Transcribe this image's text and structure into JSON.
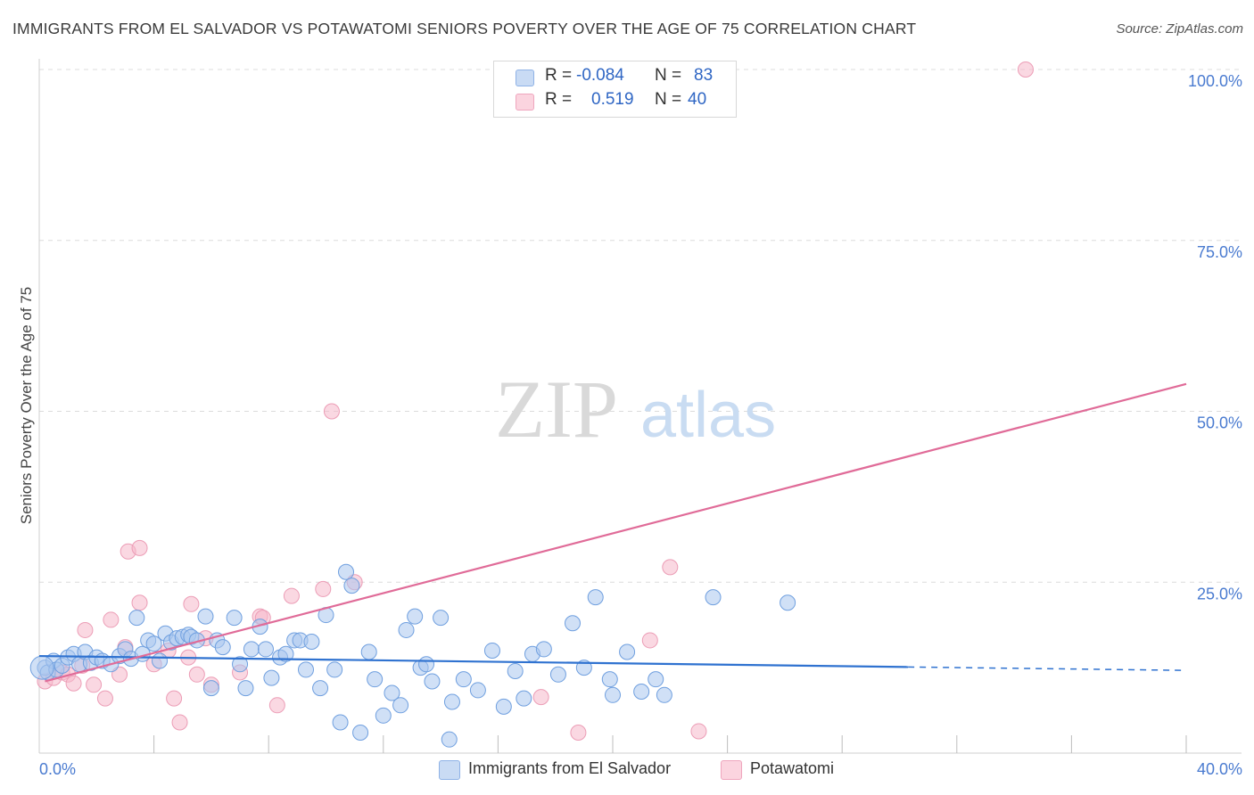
{
  "title": "IMMIGRANTS FROM EL SALVADOR VS POTAWATOMI SENIORS POVERTY OVER THE AGE OF 75 CORRELATION CHART",
  "source": "Source: ZipAtlas.com",
  "watermark": {
    "zip": "ZIP",
    "atlas": "atlas"
  },
  "legend": {
    "rows": [
      {
        "r_label": "R =",
        "r_value": "-0.084",
        "n_label": "N =",
        "n_value": "83",
        "color": "#a9c6ef"
      },
      {
        "r_label": "R =",
        "r_value": "0.519",
        "n_label": "N =",
        "n_value": "40",
        "color": "#f5b8cb"
      }
    ]
  },
  "bottom_legend": [
    {
      "label": "Immigrants from El Salvador",
      "color": "#a9c6ef"
    },
    {
      "label": "Potawatomi",
      "color": "#f5b8cb"
    }
  ],
  "colors": {
    "blue_fill": "#a9c6ef",
    "blue_line": "#2f72d0",
    "pink_fill": "#f5b8cb",
    "pink_line": "#e06b98",
    "tick_text": "#4a7bd0"
  },
  "chart_data": {
    "type": "scatter",
    "title": "IMMIGRANTS FROM EL SALVADOR VS POTAWATOMI SENIORS POVERTY OVER THE AGE OF 75 CORRELATION CHART",
    "xlabel": "",
    "ylabel": "Seniors Poverty Over the Age of 75",
    "xlim": [
      0,
      40
    ],
    "ylim": [
      0,
      100
    ],
    "x_tick_labels": [
      "0.0%",
      "40.0%"
    ],
    "y_ticks": [
      25,
      50,
      75,
      100
    ],
    "y_tick_labels": [
      "25.0%",
      "50.0%",
      "75.0%",
      "100.0%"
    ],
    "grid": true,
    "series": [
      {
        "name": "Immigrants from El Salvador",
        "trend": {
          "x": [
            0,
            30.3
          ],
          "y": [
            14.2,
            12.6
          ],
          "dashed_to": [
            40,
            12.1
          ]
        },
        "points": [
          [
            0.2,
            12.5
          ],
          [
            0.3,
            11.8
          ],
          [
            0.5,
            13.5
          ],
          [
            0.6,
            12.2
          ],
          [
            0.8,
            12.8
          ],
          [
            1.0,
            14.0
          ],
          [
            1.2,
            14.5
          ],
          [
            1.4,
            13.0
          ],
          [
            1.6,
            14.8
          ],
          [
            1.8,
            13.2
          ],
          [
            2.0,
            14.0
          ],
          [
            2.2,
            13.5
          ],
          [
            2.5,
            13.0
          ],
          [
            2.8,
            14.2
          ],
          [
            3.0,
            15.2
          ],
          [
            3.2,
            13.8
          ],
          [
            3.4,
            19.8
          ],
          [
            3.6,
            14.5
          ],
          [
            3.8,
            16.5
          ],
          [
            4.0,
            16.0
          ],
          [
            4.2,
            13.5
          ],
          [
            4.4,
            17.5
          ],
          [
            4.6,
            16.2
          ],
          [
            4.8,
            16.8
          ],
          [
            5.0,
            17.0
          ],
          [
            5.2,
            17.3
          ],
          [
            5.3,
            17.0
          ],
          [
            5.5,
            16.5
          ],
          [
            5.8,
            20.0
          ],
          [
            6.0,
            9.5
          ],
          [
            6.2,
            16.5
          ],
          [
            6.4,
            15.5
          ],
          [
            6.8,
            19.8
          ],
          [
            7.0,
            13.0
          ],
          [
            7.2,
            9.5
          ],
          [
            7.4,
            15.2
          ],
          [
            7.7,
            18.5
          ],
          [
            7.9,
            15.2
          ],
          [
            8.1,
            11.0
          ],
          [
            8.4,
            14.0
          ],
          [
            8.6,
            14.5
          ],
          [
            8.9,
            16.5
          ],
          [
            9.1,
            16.5
          ],
          [
            9.3,
            12.2
          ],
          [
            9.5,
            16.3
          ],
          [
            9.8,
            9.5
          ],
          [
            10.0,
            20.2
          ],
          [
            10.3,
            12.2
          ],
          [
            10.5,
            4.5
          ],
          [
            10.7,
            26.5
          ],
          [
            10.9,
            24.5
          ],
          [
            11.2,
            3.0
          ],
          [
            11.5,
            14.8
          ],
          [
            11.7,
            10.8
          ],
          [
            12.0,
            5.5
          ],
          [
            12.3,
            8.8
          ],
          [
            12.6,
            7.0
          ],
          [
            12.8,
            18.0
          ],
          [
            13.1,
            20.0
          ],
          [
            13.3,
            12.5
          ],
          [
            13.5,
            13.0
          ],
          [
            13.7,
            10.5
          ],
          [
            14.0,
            19.8
          ],
          [
            14.3,
            2.0
          ],
          [
            14.4,
            7.5
          ],
          [
            14.8,
            10.8
          ],
          [
            15.3,
            9.2
          ],
          [
            15.8,
            15.0
          ],
          [
            16.2,
            6.8
          ],
          [
            16.6,
            12.0
          ],
          [
            16.9,
            8.0
          ],
          [
            17.2,
            14.5
          ],
          [
            17.6,
            15.2
          ],
          [
            18.1,
            11.5
          ],
          [
            18.6,
            19.0
          ],
          [
            19.0,
            12.5
          ],
          [
            19.4,
            22.8
          ],
          [
            19.9,
            10.8
          ],
          [
            20.0,
            8.5
          ],
          [
            20.5,
            14.8
          ],
          [
            21.0,
            9.0
          ],
          [
            21.5,
            10.8
          ],
          [
            21.8,
            8.5
          ],
          [
            23.5,
            22.8
          ],
          [
            26.1,
            22.0
          ]
        ]
      },
      {
        "name": "Potawatomi",
        "trend": {
          "x": [
            0.2,
            40
          ],
          "y": [
            10.5,
            54
          ]
        },
        "points": [
          [
            0.2,
            10.5
          ],
          [
            0.5,
            11.0
          ],
          [
            0.8,
            11.8
          ],
          [
            1.0,
            11.5
          ],
          [
            1.2,
            10.2
          ],
          [
            1.5,
            12.8
          ],
          [
            1.6,
            18.0
          ],
          [
            1.9,
            10.0
          ],
          [
            2.3,
            8.0
          ],
          [
            2.5,
            19.5
          ],
          [
            2.8,
            11.5
          ],
          [
            3.0,
            15.5
          ],
          [
            3.1,
            29.5
          ],
          [
            3.5,
            22.0
          ],
          [
            3.5,
            30.0
          ],
          [
            4.0,
            13.0
          ],
          [
            4.5,
            15.0
          ],
          [
            4.7,
            8.0
          ],
          [
            4.9,
            4.5
          ],
          [
            5.2,
            14.0
          ],
          [
            5.3,
            21.8
          ],
          [
            5.5,
            11.5
          ],
          [
            5.8,
            16.8
          ],
          [
            6.0,
            10.0
          ],
          [
            7.0,
            11.8
          ],
          [
            7.7,
            20.0
          ],
          [
            7.8,
            19.8
          ],
          [
            8.3,
            7.0
          ],
          [
            8.8,
            23.0
          ],
          [
            9.9,
            24.0
          ],
          [
            10.2,
            50.0
          ],
          [
            11.0,
            25.0
          ],
          [
            17.5,
            8.2
          ],
          [
            18.8,
            3.0
          ],
          [
            21.3,
            16.5
          ],
          [
            22.0,
            27.2
          ],
          [
            23.0,
            3.2
          ],
          [
            34.4,
            100.0
          ]
        ]
      }
    ]
  }
}
